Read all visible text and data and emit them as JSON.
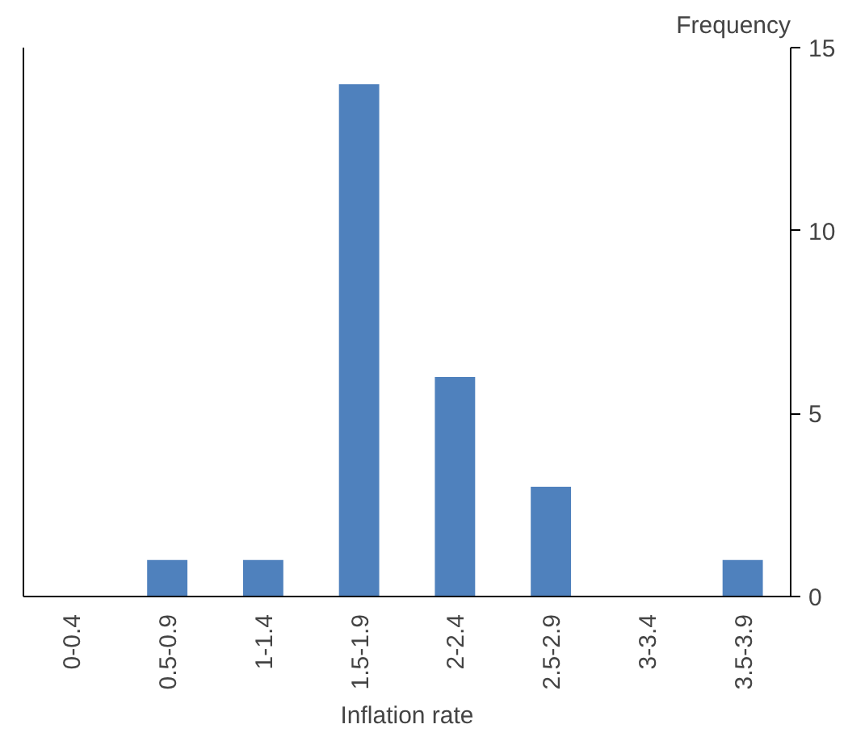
{
  "chart_data": {
    "type": "bar",
    "xlabel": "Inflation rate",
    "ylabel": "Frequency",
    "categories": [
      "0-0.4",
      "0.5-0.9",
      "1-1.4",
      "1.5-1.9",
      "2-2.4",
      "2.5-2.9",
      "3-3.4",
      "3.5-3.9"
    ],
    "values": [
      0,
      1,
      1,
      14,
      6,
      3,
      0,
      1
    ],
    "color": "#4f81bd",
    "ylim": [
      0,
      15
    ],
    "yticks": [
      0,
      5,
      10,
      15
    ],
    "grid": false
  }
}
